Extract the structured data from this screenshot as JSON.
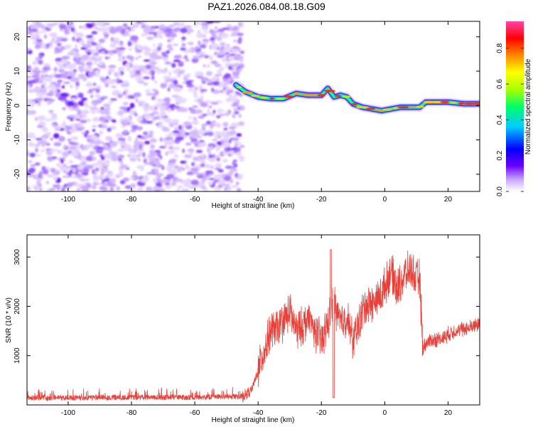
{
  "title": "PAZ1.2026.084.08.18.G09",
  "chart_data": [
    {
      "type": "heatmap",
      "xlabel": "Height of straight line (km)",
      "ylabel": "Frequency (Hz)",
      "xlim": [
        -113,
        30
      ],
      "ylim": [
        -25,
        24.5
      ],
      "xticks": [
        -100,
        -80,
        -60,
        -40,
        -20,
        0,
        20
      ],
      "yticks": [
        -20,
        -10,
        0,
        10,
        20
      ],
      "noise_region_x": [
        -113,
        -45
      ],
      "ridge": {
        "x": [
          -47,
          -44,
          -40,
          -36,
          -32,
          -28,
          -24,
          -20,
          -18,
          -16,
          -14,
          -12,
          -10,
          -7,
          -4,
          -1,
          2,
          5,
          8,
          11,
          13,
          16,
          20,
          25,
          30
        ],
        "y": [
          6,
          4,
          2.5,
          2,
          2,
          3.5,
          3,
          3,
          5,
          2.5,
          3,
          2.5,
          0.5,
          -0.5,
          -1,
          -1.5,
          -1,
          -0.5,
          -0.5,
          -0.5,
          1,
          1,
          1,
          0.5,
          0.5
        ]
      },
      "colorbar": {
        "label": "Normalized spectral amplitude",
        "range": [
          0,
          0.95
        ],
        "ticks": [
          0.0,
          0.2,
          0.4,
          0.6,
          0.8
        ],
        "colors": [
          "#ffffff",
          "#b07aff",
          "#5a00ff",
          "#0000ff",
          "#00ccff",
          "#00ff55",
          "#aaff00",
          "#ffff00",
          "#ff8800",
          "#ff0000",
          "#ff44aa"
        ]
      }
    },
    {
      "type": "line",
      "xlabel": "Height of straight line (km)",
      "ylabel": "SNR (10 * v/v)",
      "xlim": [
        -113,
        30
      ],
      "ylim": [
        0,
        3450
      ],
      "xticks": [
        -100,
        -80,
        -60,
        -40,
        -20,
        0,
        20
      ],
      "yticks": [
        1000,
        2000,
        3000
      ],
      "color": "#e8413a",
      "envelope": {
        "x": [
          -113,
          -60,
          -45,
          -42,
          -40,
          -38,
          -36,
          -34,
          -32,
          -30,
          -28,
          -26,
          -24,
          -22,
          -20,
          -18,
          -16,
          -14,
          -12,
          -10,
          -8,
          -6,
          -4,
          -2,
          0,
          2,
          4,
          6,
          8,
          10,
          11,
          12,
          14,
          18,
          22,
          26,
          30
        ],
        "y": [
          130,
          140,
          160,
          300,
          700,
          1100,
          1500,
          1550,
          1700,
          1900,
          1500,
          1600,
          1750,
          1500,
          1300,
          1650,
          2100,
          1650,
          1800,
          1300,
          1700,
          2050,
          2050,
          2150,
          2400,
          2700,
          2350,
          2600,
          2750,
          2550,
          2600,
          1150,
          1300,
          1350,
          1500,
          1550,
          1650
        ]
      }
    }
  ]
}
